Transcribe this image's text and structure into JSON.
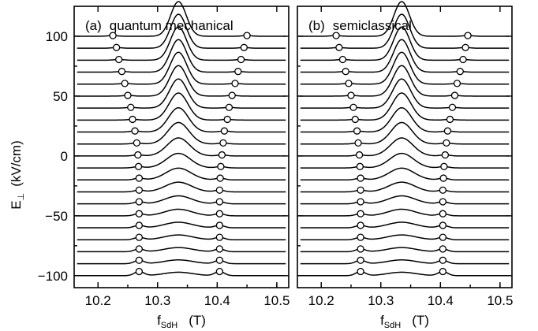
{
  "chart_data": {
    "type": "line",
    "description_of_encoding": "",
    "x_axis": {
      "label_main": "f",
      "label_sub": "SdH",
      "label_unit": "(T)",
      "range": [
        10.16,
        10.52
      ],
      "ticks": [
        10.2,
        10.3,
        10.4,
        10.5
      ],
      "tick_labels": [
        "10.2",
        "10.3",
        "10.4",
        "10.5"
      ]
    },
    "y_axis": {
      "label_main": "E",
      "label_sub": "⊥",
      "label_unit": "(kV/cm)",
      "range": [
        -110,
        125
      ],
      "ticks": [
        -100,
        -50,
        0,
        50,
        100
      ],
      "tick_labels": [
        "−100",
        "−50",
        "0",
        "50",
        "100"
      ]
    },
    "grid": false,
    "panels": [
      {
        "label": "(a)",
        "title": "quantum mechanical",
        "fields_kV_cm": [
          100,
          90,
          80,
          70,
          60,
          50,
          40,
          30,
          20,
          10,
          0,
          -10,
          -20,
          -30,
          -40,
          -50,
          -60,
          -70,
          -80,
          -90,
          -100
        ],
        "left_peak_T": [
          10.225,
          10.231,
          10.235,
          10.24,
          10.245,
          10.25,
          10.255,
          10.258,
          10.262,
          10.265,
          10.267,
          10.268,
          10.269,
          10.269,
          10.269,
          10.269,
          10.269,
          10.269,
          10.269,
          10.269,
          10.269
        ],
        "right_peak_T": [
          10.45,
          10.445,
          10.44,
          10.435,
          10.43,
          10.425,
          10.42,
          10.417,
          10.412,
          10.41,
          10.408,
          10.406,
          10.405,
          10.404,
          10.404,
          10.404,
          10.404,
          10.404,
          10.404,
          10.404,
          10.404
        ],
        "main_peak_height": [
          1.0,
          0.98,
          0.96,
          0.94,
          0.92,
          0.88,
          0.84,
          0.78,
          0.7,
          0.62,
          0.52,
          0.42,
          0.34,
          0.28,
          0.23,
          0.19,
          0.16,
          0.14,
          0.12,
          0.11,
          0.1
        ],
        "side_peak_height": [
          0.02,
          0.02,
          0.02,
          0.02,
          0.02,
          0.02,
          0.02,
          0.02,
          0.03,
          0.03,
          0.03,
          0.04,
          0.05,
          0.05,
          0.06,
          0.06,
          0.07,
          0.07,
          0.08,
          0.1,
          0.12
        ]
      },
      {
        "label": "(b)",
        "title": "semiclassical",
        "fields_kV_cm": [
          100,
          90,
          80,
          70,
          60,
          50,
          40,
          30,
          20,
          10,
          0,
          -10,
          -20,
          -30,
          -40,
          -50,
          -60,
          -70,
          -80,
          -90,
          -100
        ],
        "left_peak_T": [
          10.225,
          10.23,
          10.236,
          10.241,
          10.246,
          10.25,
          10.254,
          10.257,
          10.26,
          10.262,
          10.264,
          10.265,
          10.266,
          10.266,
          10.266,
          10.266,
          10.266,
          10.266,
          10.266,
          10.266,
          10.266
        ],
        "right_peak_T": [
          10.446,
          10.442,
          10.438,
          10.433,
          10.428,
          10.424,
          10.42,
          10.416,
          10.412,
          10.41,
          10.408,
          10.406,
          10.405,
          10.404,
          10.404,
          10.404,
          10.404,
          10.404,
          10.404,
          10.404,
          10.404
        ],
        "main_peak_height": [
          1.0,
          0.98,
          0.96,
          0.94,
          0.92,
          0.88,
          0.84,
          0.78,
          0.7,
          0.62,
          0.52,
          0.42,
          0.34,
          0.28,
          0.23,
          0.19,
          0.16,
          0.14,
          0.12,
          0.11,
          0.1
        ],
        "side_peak_height": [
          0.02,
          0.02,
          0.02,
          0.02,
          0.02,
          0.02,
          0.02,
          0.02,
          0.03,
          0.03,
          0.03,
          0.04,
          0.05,
          0.05,
          0.06,
          0.06,
          0.07,
          0.07,
          0.08,
          0.1,
          0.12
        ]
      }
    ],
    "main_peak_center_T": 10.335,
    "colors": {
      "line": "#000000",
      "marker_fill": "#ffffff"
    }
  }
}
